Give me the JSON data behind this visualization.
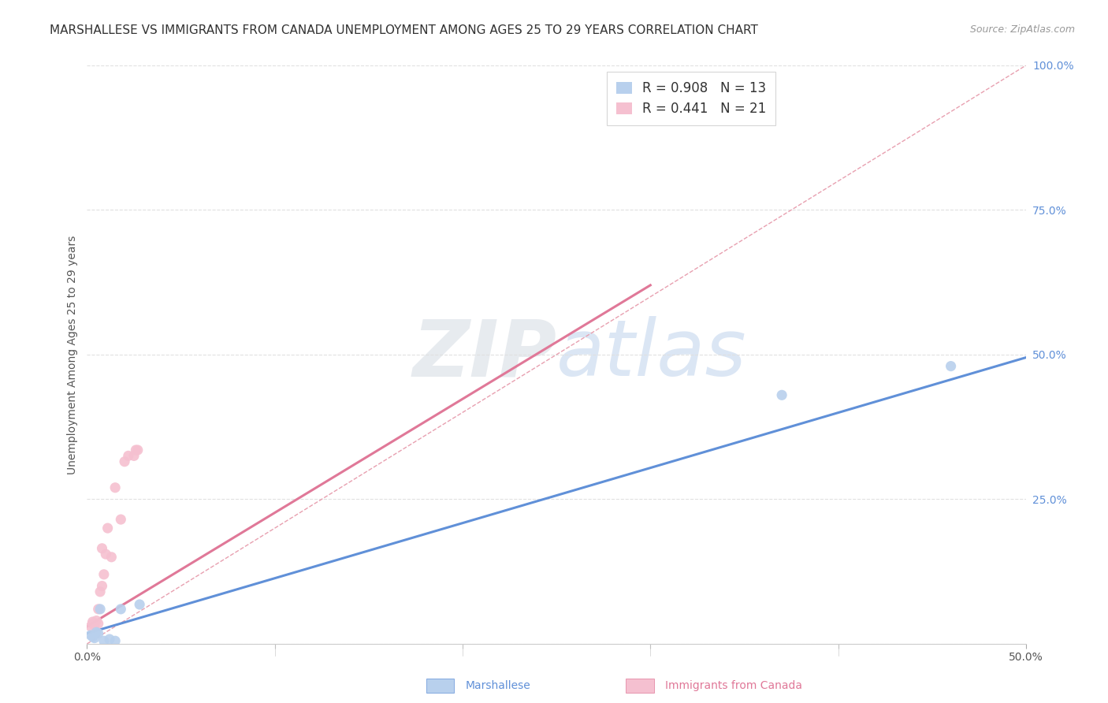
{
  "title": "MARSHALLESE VS IMMIGRANTS FROM CANADA UNEMPLOYMENT AMONG AGES 25 TO 29 YEARS CORRELATION CHART",
  "source": "Source: ZipAtlas.com",
  "ylabel": "Unemployment Among Ages 25 to 29 years",
  "xlim": [
    0.0,
    0.5
  ],
  "ylim": [
    0.0,
    1.0
  ],
  "xticks": [
    0.0,
    0.1,
    0.2,
    0.3,
    0.4,
    0.5
  ],
  "yticks": [
    0.0,
    0.25,
    0.5,
    0.75,
    1.0
  ],
  "xticklabels": [
    "0.0%",
    "",
    "",
    "",
    "",
    "50.0%"
  ],
  "yticklabels": [
    "",
    "25.0%",
    "50.0%",
    "75.0%",
    "100.0%"
  ],
  "watermark": "ZIPatlas",
  "blue_R": 0.908,
  "blue_N": 13,
  "pink_R": 0.441,
  "pink_N": 21,
  "blue_color": "#b8d0ed",
  "pink_color": "#f5c0d0",
  "blue_line_color": "#6090d8",
  "pink_line_color": "#e07898",
  "diagonal_color": "#e8a0b0",
  "blue_points_x": [
    0.002,
    0.003,
    0.004,
    0.005,
    0.006,
    0.007,
    0.009,
    0.012,
    0.015,
    0.018,
    0.028,
    0.37,
    0.46
  ],
  "blue_points_y": [
    0.015,
    0.012,
    0.01,
    0.02,
    0.018,
    0.06,
    0.005,
    0.008,
    0.005,
    0.06,
    0.068,
    0.43,
    0.48
  ],
  "pink_points_x": [
    0.002,
    0.003,
    0.003,
    0.004,
    0.005,
    0.006,
    0.006,
    0.007,
    0.008,
    0.008,
    0.009,
    0.01,
    0.011,
    0.013,
    0.015,
    0.018,
    0.02,
    0.022,
    0.025,
    0.026,
    0.027
  ],
  "pink_points_y": [
    0.03,
    0.035,
    0.038,
    0.032,
    0.04,
    0.035,
    0.06,
    0.09,
    0.1,
    0.165,
    0.12,
    0.155,
    0.2,
    0.15,
    0.27,
    0.215,
    0.315,
    0.325,
    0.325,
    0.335,
    0.335
  ],
  "blue_line_x": [
    0.0,
    0.5
  ],
  "blue_line_y": [
    0.018,
    0.495
  ],
  "pink_line_x": [
    0.0,
    0.3
  ],
  "pink_line_y": [
    0.03,
    0.62
  ],
  "diagonal_line_x": [
    0.0,
    0.5
  ],
  "diagonal_line_y": [
    0.0,
    1.0
  ],
  "title_fontsize": 11,
  "axis_label_fontsize": 10,
  "tick_fontsize": 10,
  "legend_fontsize": 12,
  "source_fontsize": 9,
  "marker_size": 90,
  "background_color": "#ffffff",
  "grid_color": "#e0e0e0"
}
